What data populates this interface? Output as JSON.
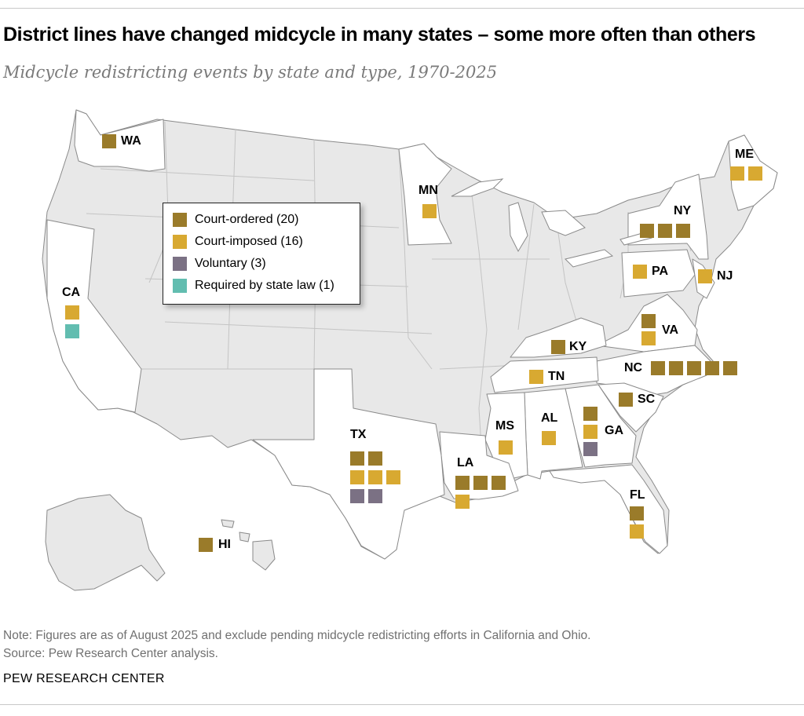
{
  "title": "District lines have changed midcycle in many states – some more often than others",
  "subtitle": "Midcycle redistricting events by state and type, 1970-2025",
  "colors": {
    "court_ordered": "#9a7b2a",
    "court_imposed": "#d8a931",
    "voluntary": "#7b7184",
    "state_law": "#62bdb0",
    "land": "#e8e8e8",
    "highlight": "#ffffff",
    "border": "#8a8a8a"
  },
  "legend": [
    {
      "type": "court_ordered",
      "label": "Court-ordered (20)"
    },
    {
      "type": "court_imposed",
      "label": "Court-imposed (16)"
    },
    {
      "type": "voluntary",
      "label": "Voluntary (3)"
    },
    {
      "type": "state_law",
      "label": "Required by state law (1)"
    }
  ],
  "states": [
    {
      "abbr": "WA",
      "events": [
        "court_ordered"
      ]
    },
    {
      "abbr": "CA",
      "events": [
        "court_imposed",
        "state_law"
      ]
    },
    {
      "abbr": "MN",
      "events": [
        "court_imposed"
      ]
    },
    {
      "abbr": "ME",
      "events": [
        "court_imposed",
        "court_imposed"
      ]
    },
    {
      "abbr": "NY",
      "events": [
        "court_ordered",
        "court_ordered",
        "court_ordered"
      ]
    },
    {
      "abbr": "PA",
      "events": [
        "court_imposed"
      ]
    },
    {
      "abbr": "NJ",
      "events": [
        "court_imposed"
      ]
    },
    {
      "abbr": "VA",
      "events": [
        "court_ordered",
        "court_imposed"
      ]
    },
    {
      "abbr": "KY",
      "events": [
        "court_ordered"
      ]
    },
    {
      "abbr": "NC",
      "events": [
        "court_ordered",
        "court_ordered",
        "court_ordered",
        "court_ordered",
        "court_ordered"
      ]
    },
    {
      "abbr": "TN",
      "events": [
        "court_imposed"
      ]
    },
    {
      "abbr": "SC",
      "events": [
        "court_ordered"
      ]
    },
    {
      "abbr": "GA",
      "events": [
        "court_ordered",
        "court_imposed",
        "voluntary"
      ]
    },
    {
      "abbr": "AL",
      "events": [
        "court_imposed"
      ]
    },
    {
      "abbr": "MS",
      "events": [
        "court_imposed"
      ]
    },
    {
      "abbr": "LA",
      "events": [
        "court_ordered",
        "court_ordered",
        "court_ordered",
        "court_imposed"
      ]
    },
    {
      "abbr": "TX",
      "events": [
        "court_ordered",
        "court_ordered",
        "court_imposed",
        "court_imposed",
        "court_imposed",
        "voluntary",
        "voluntary"
      ]
    },
    {
      "abbr": "FL",
      "events": [
        "court_ordered",
        "court_imposed"
      ]
    },
    {
      "abbr": "HI",
      "events": [
        "court_ordered"
      ]
    }
  ],
  "note": "Note: Figures are as of August 2025 and exclude pending midcycle redistricting efforts in California and Ohio.",
  "source": "Source: Pew Research Center analysis.",
  "brand": "PEW RESEARCH CENTER"
}
